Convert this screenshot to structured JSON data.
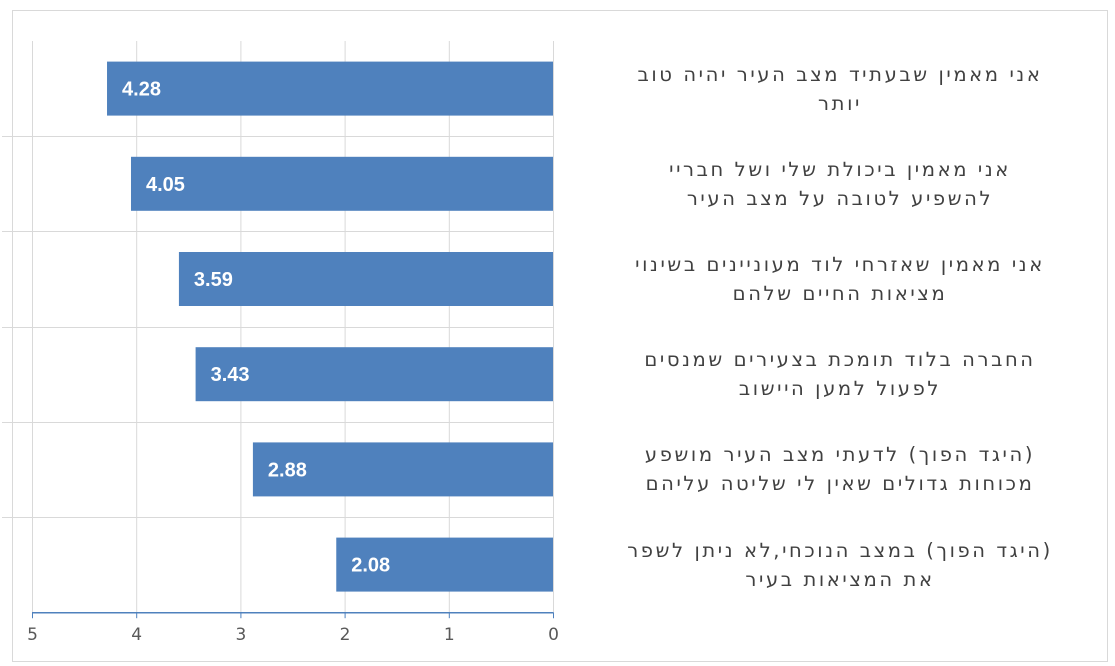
{
  "chart_data": {
    "type": "bar",
    "orientation": "horizontal",
    "x_axis_reversed": true,
    "categories": [
      "אני מאמין שבעתיד מצב העיר יהיה טוב יותר",
      "אני מאמין ביכולת שלי ושל חבריי להשפיע לטובה על מצב העיר",
      "אני מאמין שאזרחי לוד מעוניינים בשינוי מציאות החיים שלהם",
      "החברה בלוד תומכת בצעירים שמנסים לפעול למען היישוב",
      "(היגד הפוך) לדעתי מצב העיר מושפע מכוחות גדולים שאין לי שליטה עליהם",
      "(היגד הפוך) במצב הנוכחי,לא ניתן לשפר את המציאות בעיר"
    ],
    "category_lines": [
      [
        "אני מאמין שבעתיד מצב העיר יהיה טוב",
        "יותר"
      ],
      [
        "אני מאמין ביכולת שלי ושל חבריי",
        "להשפיע לטובה על מצב העיר"
      ],
      [
        "אני מאמין שאזרחי לוד מעוניינים בשינוי",
        "מציאות החיים שלהם"
      ],
      [
        "החברה בלוד תומכת בצעירים שמנסים",
        "לפעול למען היישוב"
      ],
      [
        "(היגד הפוך) לדעתי מצב העיר מושפע",
        "מכוחות גדולים שאין לי שליטה עליהם"
      ],
      [
        "(היגד הפוך) במצב הנוכחי,לא ניתן לשפר",
        "את המציאות בעיר"
      ]
    ],
    "values": [
      4.28,
      4.05,
      3.59,
      3.43,
      2.88,
      2.08
    ],
    "data_labels": [
      "4.28",
      "4.05",
      "3.59",
      "3.43",
      "2.88",
      "2.08"
    ],
    "xlim": [
      0,
      5
    ],
    "x_ticks": [
      "0",
      "1",
      "2",
      "3",
      "4",
      "5"
    ],
    "title": "",
    "xlabel": "",
    "ylabel": "",
    "grid": "vertical",
    "legend": "none",
    "colors": {
      "bar": "#4f81bd",
      "bar_label": "#ffffff",
      "grid": "#d9d9d9",
      "axis": "#4f81bd",
      "tick_text": "#595959",
      "category_text": "#404040"
    }
  }
}
